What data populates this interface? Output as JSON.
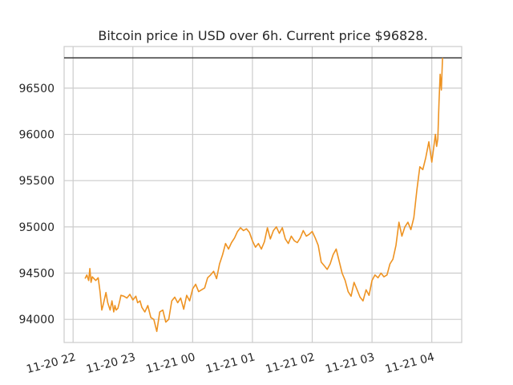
{
  "chart_data": {
    "type": "line",
    "title": "Bitcoin price in USD over 6h. Current price $96828.",
    "xlabel": "",
    "ylabel": "",
    "grid": true,
    "x_tick_labels": [
      "11-20 22",
      "11-20 23",
      "11-21 00",
      "11-21 01",
      "11-21 02",
      "11-21 03",
      "11-21 04"
    ],
    "y_ticks": [
      94000,
      94500,
      95000,
      95500,
      96000,
      96500
    ],
    "ylim": [
      93750,
      96950
    ],
    "xlim_hours": [
      21.85,
      28.5
    ],
    "reference_line": {
      "value": 96828,
      "color": "#3b3b3b"
    },
    "series": [
      {
        "color": "#ee9322",
        "x_hours": [
          22.2,
          22.23,
          22.26,
          22.28,
          22.3,
          22.32,
          22.35,
          22.38,
          22.42,
          22.45,
          22.48,
          22.5,
          22.55,
          22.58,
          22.62,
          22.65,
          22.68,
          22.7,
          22.72,
          22.75,
          22.78,
          22.8,
          22.85,
          22.9,
          22.95,
          23.0,
          23.05,
          23.08,
          23.12,
          23.15,
          23.2,
          23.25,
          23.3,
          23.35,
          23.4,
          23.45,
          23.5,
          23.55,
          23.6,
          23.65,
          23.7,
          23.75,
          23.8,
          23.85,
          23.9,
          23.95,
          24.0,
          24.05,
          24.1,
          24.15,
          24.2,
          24.25,
          24.3,
          24.35,
          24.4,
          24.45,
          24.5,
          24.55,
          24.6,
          24.65,
          24.7,
          24.75,
          24.8,
          24.85,
          24.9,
          24.95,
          25.0,
          25.05,
          25.1,
          25.15,
          25.2,
          25.25,
          25.3,
          25.35,
          25.4,
          25.45,
          25.5,
          25.55,
          25.6,
          25.65,
          25.7,
          25.75,
          25.8,
          25.85,
          25.9,
          25.95,
          26.0,
          26.05,
          26.1,
          26.15,
          26.2,
          26.25,
          26.3,
          26.35,
          26.4,
          26.45,
          26.5,
          26.55,
          26.6,
          26.65,
          26.7,
          26.75,
          26.8,
          26.85,
          26.9,
          26.95,
          27.0,
          27.05,
          27.1,
          27.15,
          27.2,
          27.25,
          27.3,
          27.35,
          27.4,
          27.45,
          27.5,
          27.55,
          27.6,
          27.65,
          27.7,
          27.75,
          27.8,
          27.85,
          27.9,
          27.95,
          28.0,
          28.02,
          28.04,
          28.06,
          28.08,
          28.1,
          28.12,
          28.14,
          28.16,
          28.18
        ],
        "y": [
          94440,
          94480,
          94420,
          94550,
          94400,
          94460,
          94440,
          94420,
          94450,
          94300,
          94100,
          94150,
          94290,
          94180,
          94100,
          94200,
          94080,
          94150,
          94100,
          94120,
          94200,
          94260,
          94250,
          94230,
          94270,
          94210,
          94250,
          94180,
          94200,
          94130,
          94080,
          94150,
          94020,
          94000,
          93870,
          94080,
          94100,
          93970,
          94000,
          94200,
          94240,
          94180,
          94230,
          94110,
          94260,
          94200,
          94330,
          94380,
          94300,
          94320,
          94340,
          94450,
          94480,
          94520,
          94440,
          94600,
          94700,
          94820,
          94760,
          94830,
          94880,
          94950,
          94990,
          94960,
          94980,
          94940,
          94850,
          94780,
          94820,
          94760,
          94840,
          94990,
          94870,
          94960,
          95000,
          94930,
          94990,
          94870,
          94820,
          94900,
          94850,
          94830,
          94880,
          94960,
          94900,
          94920,
          94950,
          94880,
          94800,
          94620,
          94580,
          94540,
          94600,
          94700,
          94760,
          94630,
          94500,
          94420,
          94300,
          94250,
          94400,
          94320,
          94240,
          94200,
          94320,
          94260,
          94420,
          94480,
          94450,
          94500,
          94460,
          94480,
          94600,
          94650,
          94800,
          95050,
          94900,
          95000,
          95050,
          94970,
          95100,
          95400,
          95650,
          95620,
          95750,
          95920,
          95700,
          95800,
          95900,
          96000,
          95870,
          95950,
          96350,
          96650,
          96480,
          96828
        ]
      }
    ]
  }
}
